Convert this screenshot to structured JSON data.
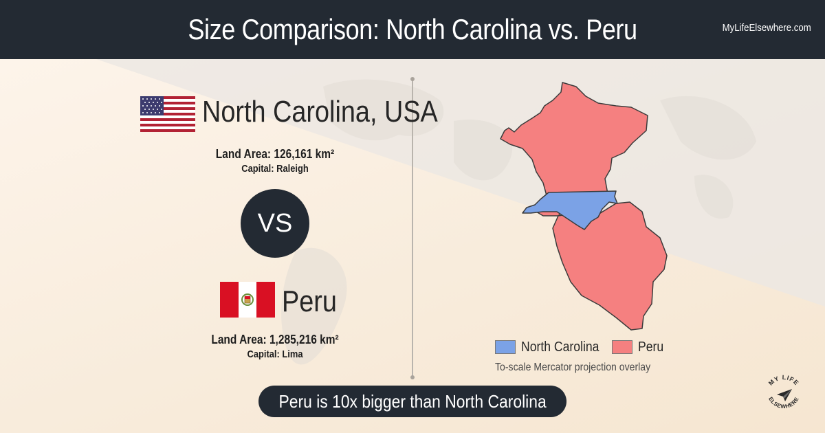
{
  "header": {
    "title": "Size Comparison: North Carolina vs. Peru",
    "brand": "MyLifeElsewhere.com"
  },
  "region_a": {
    "name": "North Carolina, USA",
    "land_area": "Land Area: 126,161 km²",
    "capital": "Capital: Raleigh",
    "flag_icon": "usa-flag-icon"
  },
  "vs_label": "VS",
  "region_b": {
    "name": "Peru",
    "land_area": "Land Area: 1,285,216 km²",
    "capital": "Capital: Lima",
    "flag_icon": "peru-flag-icon"
  },
  "map": {
    "legend": [
      {
        "label": "North Carolina",
        "color": "#7ba2e6"
      },
      {
        "label": "Peru",
        "color": "#f58080"
      }
    ],
    "caption": "To-scale Mercator projection overlay"
  },
  "summary": "Peru is 10x bigger than North Carolina",
  "logo": {
    "text_top": "MY LIFE",
    "text_bottom": "ELSEWHERE",
    "icon": "paper-plane-icon"
  },
  "colors": {
    "header_bg": "#232a33",
    "accent_dark": "#232a33",
    "peru_fill": "#f58080",
    "nc_fill": "#7ba2e6"
  }
}
